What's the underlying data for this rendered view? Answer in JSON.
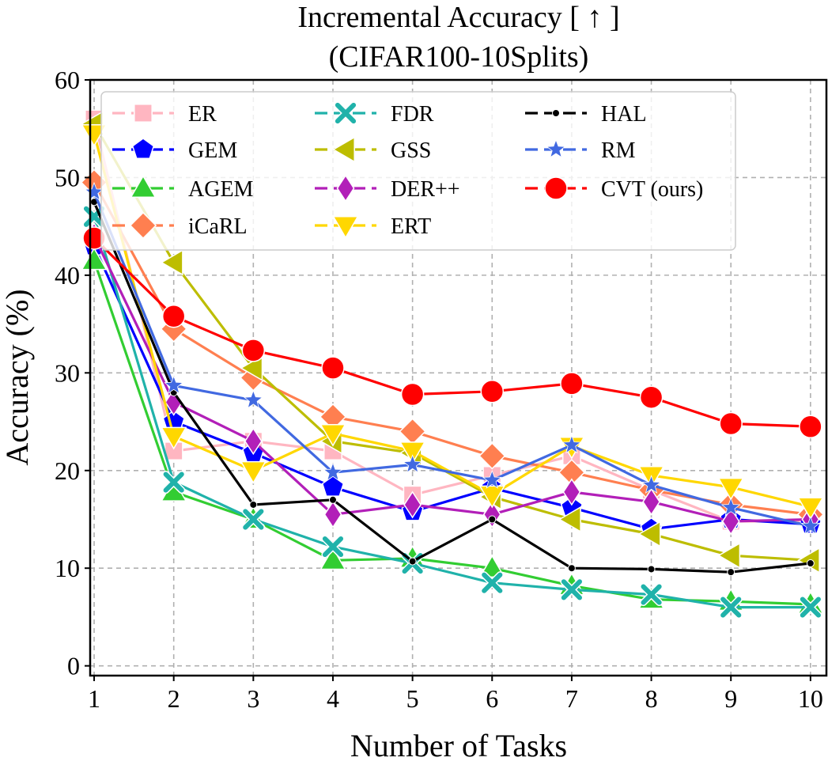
{
  "chart_data": {
    "type": "line",
    "title": "Incremental Accuracy [ ↑ ]",
    "subtitle": "(CIFAR100-10Splits)",
    "xlabel": "Number of Tasks",
    "ylabel": "Accuracy (%)",
    "xlim": [
      0.95,
      10.2
    ],
    "ylim": [
      -1,
      60
    ],
    "xticks": [
      1,
      2,
      3,
      4,
      5,
      6,
      7,
      8,
      9,
      10
    ],
    "yticks": [
      0,
      10,
      20,
      30,
      40,
      50,
      60
    ],
    "grid": true,
    "legend_position": "top",
    "x": [
      1,
      2,
      3,
      4,
      5,
      6,
      7,
      8,
      9,
      10
    ],
    "series": [
      {
        "name": "ER",
        "color": "#ffb6c1",
        "marker": "square",
        "values": [
          56.0,
          22.0,
          23.0,
          22.0,
          17.5,
          19.5,
          21.5,
          18.0,
          14.8,
          14.8
        ]
      },
      {
        "name": "GEM",
        "color": "#0000ff",
        "marker": "pentagon",
        "values": [
          43.0,
          25.0,
          21.8,
          18.3,
          15.8,
          18.2,
          16.2,
          14.0,
          15.0,
          14.5
        ]
      },
      {
        "name": "AGEM",
        "color": "#32cd32",
        "marker": "triangle-up",
        "values": [
          41.5,
          17.8,
          15.0,
          10.8,
          11.0,
          10.0,
          8.2,
          6.8,
          6.6,
          6.3
        ]
      },
      {
        "name": "iCaRL",
        "color": "#ff7f50",
        "marker": "diamond",
        "values": [
          49.5,
          34.5,
          29.5,
          25.5,
          24.0,
          21.5,
          19.8,
          18.0,
          16.5,
          15.5
        ]
      },
      {
        "name": "FDR",
        "color": "#20b2aa",
        "marker": "x",
        "values": [
          46.0,
          18.8,
          15.0,
          12.2,
          10.5,
          8.5,
          7.8,
          7.3,
          6.0,
          6.0
        ]
      },
      {
        "name": "GSS",
        "color": "#bdbd00",
        "marker": "triangle-left",
        "values": [
          55.5,
          41.3,
          30.5,
          23.0,
          21.8,
          17.3,
          15.0,
          13.5,
          11.3,
          10.8
        ]
      },
      {
        "name": "DER++",
        "color": "#b21fb8",
        "marker": "thin-diamond",
        "values": [
          44.0,
          27.0,
          23.0,
          15.5,
          16.5,
          15.5,
          17.8,
          16.8,
          14.8,
          15.0
        ]
      },
      {
        "name": "ERT",
        "color": "#ffd700",
        "marker": "triangle-down",
        "values": [
          54.5,
          23.5,
          20.0,
          23.8,
          22.0,
          17.5,
          22.5,
          19.5,
          18.3,
          16.3
        ]
      },
      {
        "name": "HAL",
        "color": "#000000",
        "marker": "dot",
        "values": [
          47.5,
          28.0,
          16.5,
          17.0,
          10.7,
          15.0,
          10.0,
          9.9,
          9.6,
          10.5
        ]
      },
      {
        "name": "RM",
        "color": "#4169e1",
        "marker": "star",
        "values": [
          48.5,
          28.7,
          27.2,
          19.8,
          20.6,
          19.0,
          22.6,
          18.5,
          16.2,
          14.3
        ]
      },
      {
        "name": "CVT (ours)",
        "color": "#ff0000",
        "marker": "circle",
        "values": [
          43.8,
          35.8,
          32.3,
          30.5,
          27.8,
          28.1,
          28.9,
          27.5,
          24.8,
          24.5
        ]
      }
    ]
  }
}
